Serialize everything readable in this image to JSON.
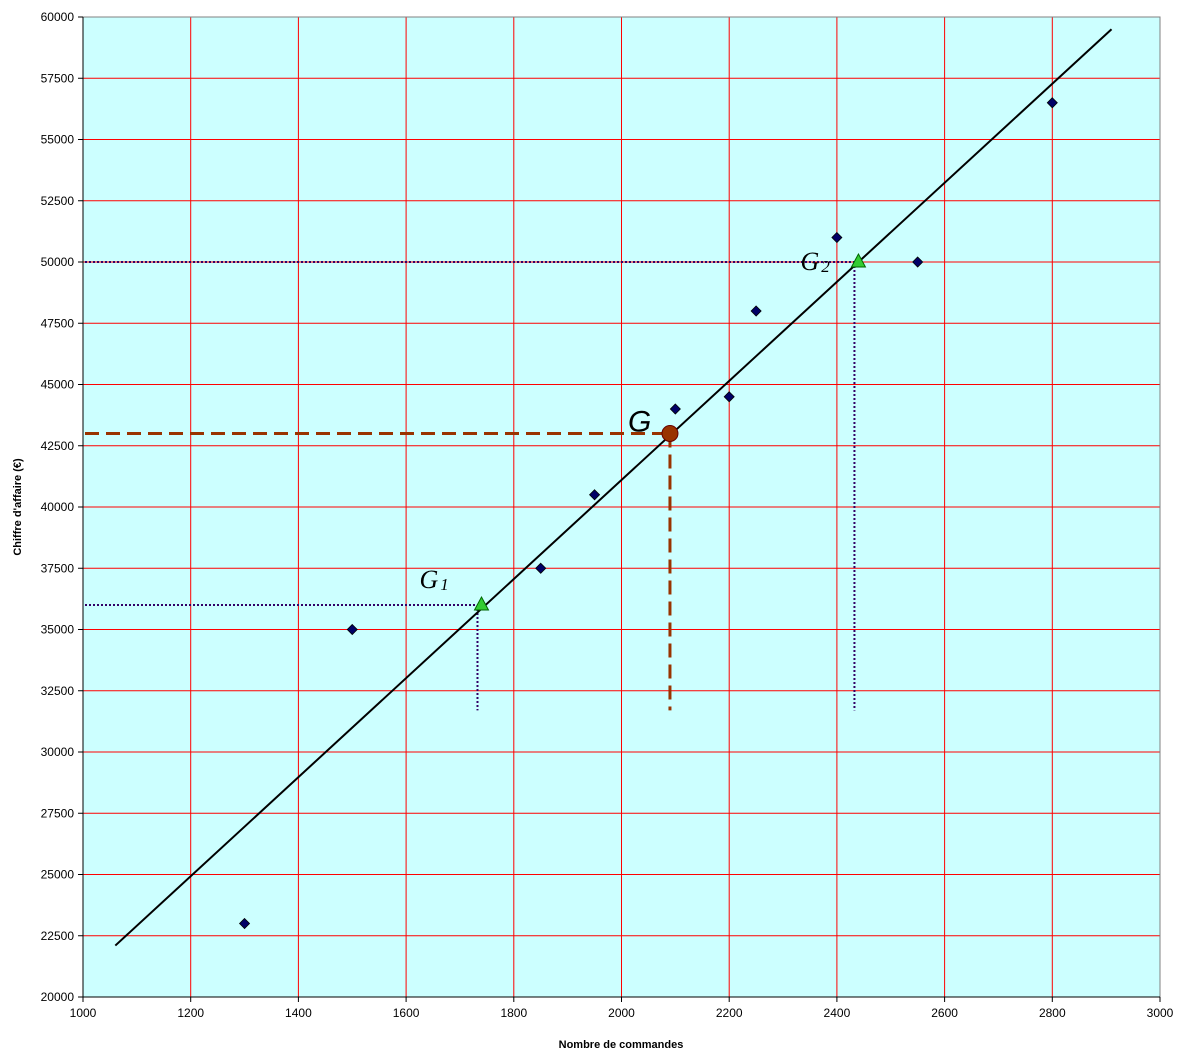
{
  "chart_data": {
    "type": "scatter",
    "xlabel": "Nombre de commandes",
    "ylabel": "Chiffre d'affaire (€)",
    "xlim": [
      1000,
      3000
    ],
    "ylim": [
      20000,
      60000
    ],
    "x_ticks": [
      1000,
      1200,
      1400,
      1600,
      1800,
      2000,
      2200,
      2400,
      2600,
      2800,
      3000
    ],
    "y_ticks": [
      20000,
      22500,
      25000,
      27500,
      30000,
      32500,
      35000,
      37500,
      40000,
      42500,
      45000,
      47500,
      50000,
      52500,
      55000,
      57500,
      60000
    ],
    "grid": true,
    "series": [
      {
        "marker": "diamond",
        "points": [
          {
            "x": 1300,
            "y": 23000
          },
          {
            "x": 1500,
            "y": 35000
          },
          {
            "x": 1850,
            "y": 37500
          },
          {
            "x": 1950,
            "y": 40500
          },
          {
            "x": 2100,
            "y": 44000
          },
          {
            "x": 2200,
            "y": 44500
          },
          {
            "x": 2250,
            "y": 48000
          },
          {
            "x": 2400,
            "y": 51000
          },
          {
            "x": 2550,
            "y": 50000
          },
          {
            "x": 2800,
            "y": 56500
          }
        ]
      }
    ],
    "regression_line": {
      "x1": 1060,
      "y1": 22100,
      "x2": 2910,
      "y2": 59500
    },
    "special_points": [
      {
        "label": "G",
        "sub": "",
        "x": 2090,
        "y": 43000,
        "marker": "circle"
      },
      {
        "label": "G",
        "sub": "1",
        "x": 1740,
        "y": 36000,
        "marker": "triangle"
      },
      {
        "label": "G",
        "sub": "2",
        "x": 2440,
        "y": 50000,
        "marker": "triangle"
      }
    ],
    "colors": {
      "plot_background": "#ccffff",
      "grid": "#ff0000",
      "points": "#000066",
      "line": "#000000",
      "g_point": "#993300",
      "g_dash": "#993300",
      "g12_point": "#33cc33",
      "g12_dot": "#330066"
    }
  }
}
